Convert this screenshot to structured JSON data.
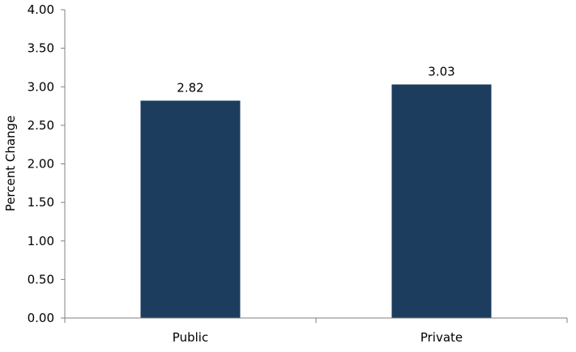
{
  "chart_data": {
    "type": "bar",
    "categories": [
      "Public",
      "Private"
    ],
    "values": [
      2.82,
      3.03
    ],
    "data_labels": [
      "2.82",
      "3.03"
    ],
    "title": "",
    "xlabel": "",
    "ylabel": "Percent Change",
    "ylim": [
      0,
      4
    ],
    "yticks": [
      "0.00",
      "0.50",
      "1.00",
      "1.50",
      "2.00",
      "2.50",
      "3.00",
      "3.50",
      "4.00"
    ],
    "ytick_values": [
      0,
      0.5,
      1,
      1.5,
      2,
      2.5,
      3,
      3.5,
      4
    ],
    "grid": false,
    "legend": "none",
    "colors": {
      "bar": "#1c3d5e",
      "axis": "#808080",
      "text": "#000000"
    }
  }
}
